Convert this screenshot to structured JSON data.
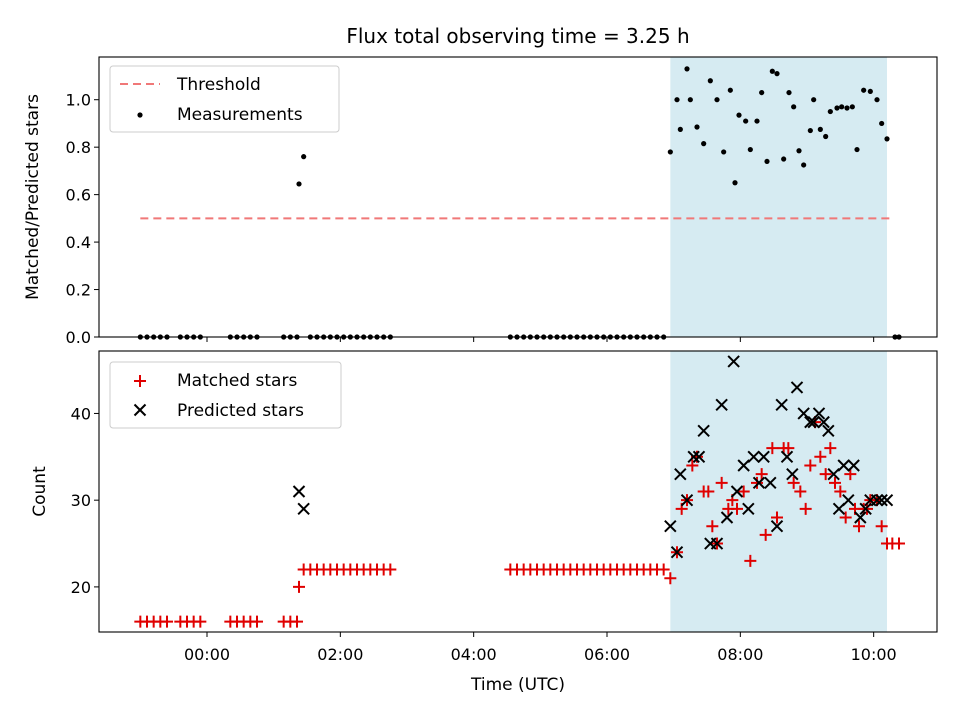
{
  "chart_data": [
    {
      "type": "scatter",
      "title": "Flux total observing time = 3.25 h",
      "xlabel": "",
      "ylabel": "Matched/Predicted stars",
      "xlim": [
        -1.62,
        10.95
      ],
      "ylim": [
        0.0,
        1.18
      ],
      "yticks": [
        "0.0",
        "0.2",
        "0.4",
        "0.6",
        "0.8",
        "1.0"
      ],
      "ytick_values": [
        0.0,
        0.2,
        0.4,
        0.6,
        0.8,
        1.0
      ],
      "x_tick_hours": [
        0,
        2,
        4,
        6,
        8,
        10
      ],
      "shaded_interval": [
        6.95,
        10.2
      ],
      "threshold": {
        "name": "Threshold",
        "value": 0.5,
        "x_range": [
          -1.0,
          10.3
        ],
        "color": "#f07878"
      },
      "measurements": {
        "name": "Measurements",
        "color": "#000000",
        "points": [
          [
            -1.0,
            0
          ],
          [
            -0.9,
            0
          ],
          [
            -0.8,
            0
          ],
          [
            -0.7,
            0
          ],
          [
            -0.6,
            0
          ],
          [
            -0.4,
            0
          ],
          [
            -0.3,
            0
          ],
          [
            -0.2,
            0
          ],
          [
            -0.1,
            0
          ],
          [
            0.35,
            0
          ],
          [
            0.45,
            0
          ],
          [
            0.55,
            0
          ],
          [
            0.65,
            0
          ],
          [
            0.75,
            0
          ],
          [
            1.15,
            0
          ],
          [
            1.25,
            0
          ],
          [
            1.35,
            0
          ],
          [
            1.38,
            0.645
          ],
          [
            1.45,
            0.76
          ],
          [
            1.55,
            0
          ],
          [
            1.65,
            0
          ],
          [
            1.75,
            0
          ],
          [
            1.85,
            0
          ],
          [
            1.95,
            0
          ],
          [
            2.05,
            0
          ],
          [
            2.15,
            0
          ],
          [
            2.25,
            0
          ],
          [
            2.35,
            0
          ],
          [
            2.45,
            0
          ],
          [
            2.55,
            0
          ],
          [
            2.65,
            0
          ],
          [
            2.75,
            0
          ],
          [
            4.55,
            0
          ],
          [
            4.65,
            0
          ],
          [
            4.75,
            0
          ],
          [
            4.85,
            0
          ],
          [
            4.95,
            0
          ],
          [
            5.05,
            0
          ],
          [
            5.15,
            0
          ],
          [
            5.25,
            0
          ],
          [
            5.35,
            0
          ],
          [
            5.45,
            0
          ],
          [
            5.55,
            0
          ],
          [
            5.65,
            0
          ],
          [
            5.75,
            0
          ],
          [
            5.85,
            0
          ],
          [
            5.95,
            0
          ],
          [
            6.05,
            0
          ],
          [
            6.15,
            0
          ],
          [
            6.25,
            0
          ],
          [
            6.35,
            0
          ],
          [
            6.45,
            0
          ],
          [
            6.55,
            0
          ],
          [
            6.65,
            0
          ],
          [
            6.75,
            0
          ],
          [
            6.85,
            0
          ],
          [
            6.95,
            0.78
          ],
          [
            7.05,
            1.0
          ],
          [
            7.1,
            0.875
          ],
          [
            7.2,
            1.13
          ],
          [
            7.25,
            1.0
          ],
          [
            7.35,
            0.885
          ],
          [
            7.45,
            0.815
          ],
          [
            7.55,
            1.08
          ],
          [
            7.65,
            1.0
          ],
          [
            7.75,
            0.78
          ],
          [
            7.85,
            1.04
          ],
          [
            7.92,
            0.65
          ],
          [
            7.98,
            0.935
          ],
          [
            8.08,
            0.91
          ],
          [
            8.15,
            0.79
          ],
          [
            8.25,
            0.91
          ],
          [
            8.32,
            1.03
          ],
          [
            8.4,
            0.74
          ],
          [
            8.48,
            1.12
          ],
          [
            8.55,
            1.11
          ],
          [
            8.65,
            0.75
          ],
          [
            8.73,
            1.03
          ],
          [
            8.8,
            0.97
          ],
          [
            8.88,
            0.785
          ],
          [
            8.95,
            0.725
          ],
          [
            9.05,
            0.87
          ],
          [
            9.1,
            1.0
          ],
          [
            9.2,
            0.875
          ],
          [
            9.28,
            0.845
          ],
          [
            9.35,
            0.95
          ],
          [
            9.45,
            0.965
          ],
          [
            9.52,
            0.97
          ],
          [
            9.6,
            0.965
          ],
          [
            9.68,
            0.97
          ],
          [
            9.75,
            0.79
          ],
          [
            9.85,
            1.04
          ],
          [
            9.95,
            1.035
          ],
          [
            10.05,
            1.0
          ],
          [
            10.12,
            0.9
          ],
          [
            10.2,
            0.835
          ],
          [
            10.32,
            0
          ],
          [
            10.38,
            0
          ]
        ]
      },
      "legend": {
        "placement": "upper-left",
        "entries": [
          "Threshold",
          "Measurements"
        ]
      }
    },
    {
      "type": "scatter",
      "title": "",
      "xlabel": "Time (UTC)",
      "ylabel": "Count",
      "xlim": [
        -1.62,
        10.95
      ],
      "ylim": [
        14.8,
        47.2
      ],
      "yticks": [
        "20",
        "30",
        "40"
      ],
      "ytick_values": [
        20,
        30,
        40
      ],
      "xticks": [
        "00:00",
        "02:00",
        "04:00",
        "06:00",
        "08:00",
        "10:00"
      ],
      "x_tick_hours": [
        0,
        2,
        4,
        6,
        8,
        10
      ],
      "shaded_interval": [
        6.95,
        10.2
      ],
      "series": [
        {
          "name": "Matched stars",
          "marker": "plus",
          "color": "#e00000",
          "points": [
            [
              -1.0,
              16
            ],
            [
              -0.9,
              16
            ],
            [
              -0.8,
              16
            ],
            [
              -0.7,
              16
            ],
            [
              -0.6,
              16
            ],
            [
              -0.4,
              16
            ],
            [
              -0.3,
              16
            ],
            [
              -0.2,
              16
            ],
            [
              -0.1,
              16
            ],
            [
              0.35,
              16
            ],
            [
              0.45,
              16
            ],
            [
              0.55,
              16
            ],
            [
              0.65,
              16
            ],
            [
              0.75,
              16
            ],
            [
              1.15,
              16
            ],
            [
              1.25,
              16
            ],
            [
              1.35,
              16
            ],
            [
              1.38,
              20
            ],
            [
              1.45,
              22
            ],
            [
              1.55,
              22
            ],
            [
              1.65,
              22
            ],
            [
              1.75,
              22
            ],
            [
              1.85,
              22
            ],
            [
              1.95,
              22
            ],
            [
              2.05,
              22
            ],
            [
              2.15,
              22
            ],
            [
              2.25,
              22
            ],
            [
              2.35,
              22
            ],
            [
              2.45,
              22
            ],
            [
              2.55,
              22
            ],
            [
              2.65,
              22
            ],
            [
              2.75,
              22
            ],
            [
              4.55,
              22
            ],
            [
              4.65,
              22
            ],
            [
              4.75,
              22
            ],
            [
              4.85,
              22
            ],
            [
              4.95,
              22
            ],
            [
              5.05,
              22
            ],
            [
              5.15,
              22
            ],
            [
              5.25,
              22
            ],
            [
              5.35,
              22
            ],
            [
              5.45,
              22
            ],
            [
              5.55,
              22
            ],
            [
              5.65,
              22
            ],
            [
              5.75,
              22
            ],
            [
              5.85,
              22
            ],
            [
              5.95,
              22
            ],
            [
              6.05,
              22
            ],
            [
              6.15,
              22
            ],
            [
              6.25,
              22
            ],
            [
              6.35,
              22
            ],
            [
              6.45,
              22
            ],
            [
              6.55,
              22
            ],
            [
              6.65,
              22
            ],
            [
              6.75,
              22
            ],
            [
              6.85,
              22
            ],
            [
              6.95,
              21
            ],
            [
              7.05,
              24
            ],
            [
              7.12,
              29
            ],
            [
              7.2,
              30
            ],
            [
              7.28,
              34
            ],
            [
              7.35,
              35
            ],
            [
              7.45,
              31
            ],
            [
              7.52,
              31
            ],
            [
              7.58,
              27
            ],
            [
              7.65,
              25
            ],
            [
              7.72,
              32
            ],
            [
              7.82,
              29
            ],
            [
              7.88,
              30
            ],
            [
              7.95,
              29
            ],
            [
              8.05,
              31
            ],
            [
              8.15,
              23
            ],
            [
              8.25,
              32
            ],
            [
              8.32,
              33
            ],
            [
              8.38,
              26
            ],
            [
              8.48,
              36
            ],
            [
              8.55,
              28
            ],
            [
              8.65,
              36
            ],
            [
              8.72,
              36
            ],
            [
              8.8,
              32
            ],
            [
              8.9,
              31
            ],
            [
              8.98,
              29
            ],
            [
              9.05,
              34
            ],
            [
              9.12,
              39
            ],
            [
              9.2,
              35
            ],
            [
              9.28,
              33
            ],
            [
              9.35,
              36
            ],
            [
              9.42,
              32
            ],
            [
              9.5,
              31
            ],
            [
              9.58,
              28
            ],
            [
              9.65,
              33
            ],
            [
              9.72,
              29
            ],
            [
              9.78,
              27
            ],
            [
              9.85,
              29
            ],
            [
              9.9,
              29
            ],
            [
              9.95,
              30
            ],
            [
              10.05,
              30
            ],
            [
              10.12,
              27
            ],
            [
              10.2,
              25
            ],
            [
              10.28,
              25
            ],
            [
              10.38,
              25
            ]
          ]
        },
        {
          "name": "Predicted stars",
          "marker": "x",
          "color": "#000000",
          "points": [
            [
              1.38,
              31
            ],
            [
              1.45,
              29
            ],
            [
              6.95,
              27
            ],
            [
              7.05,
              24
            ],
            [
              7.1,
              33
            ],
            [
              7.2,
              30
            ],
            [
              7.3,
              35
            ],
            [
              7.38,
              35
            ],
            [
              7.45,
              38
            ],
            [
              7.55,
              25
            ],
            [
              7.65,
              25
            ],
            [
              7.72,
              41
            ],
            [
              7.8,
              28
            ],
            [
              7.9,
              46
            ],
            [
              7.95,
              31
            ],
            [
              8.05,
              34
            ],
            [
              8.12,
              29
            ],
            [
              8.2,
              35
            ],
            [
              8.28,
              32
            ],
            [
              8.35,
              35
            ],
            [
              8.45,
              32
            ],
            [
              8.55,
              27
            ],
            [
              8.62,
              41
            ],
            [
              8.7,
              35
            ],
            [
              8.78,
              33
            ],
            [
              8.85,
              43
            ],
            [
              8.95,
              40
            ],
            [
              9.05,
              39
            ],
            [
              9.1,
              39
            ],
            [
              9.18,
              40
            ],
            [
              9.25,
              39
            ],
            [
              9.32,
              38
            ],
            [
              9.4,
              33
            ],
            [
              9.48,
              29
            ],
            [
              9.55,
              34
            ],
            [
              9.62,
              30
            ],
            [
              9.7,
              34
            ],
            [
              9.8,
              28
            ],
            [
              9.88,
              29
            ],
            [
              9.95,
              30
            ],
            [
              10.05,
              30
            ],
            [
              10.12,
              30
            ],
            [
              10.2,
              30
            ]
          ]
        }
      ],
      "legend": {
        "placement": "upper-left",
        "entries": [
          "Matched stars",
          "Predicted stars"
        ]
      }
    }
  ]
}
